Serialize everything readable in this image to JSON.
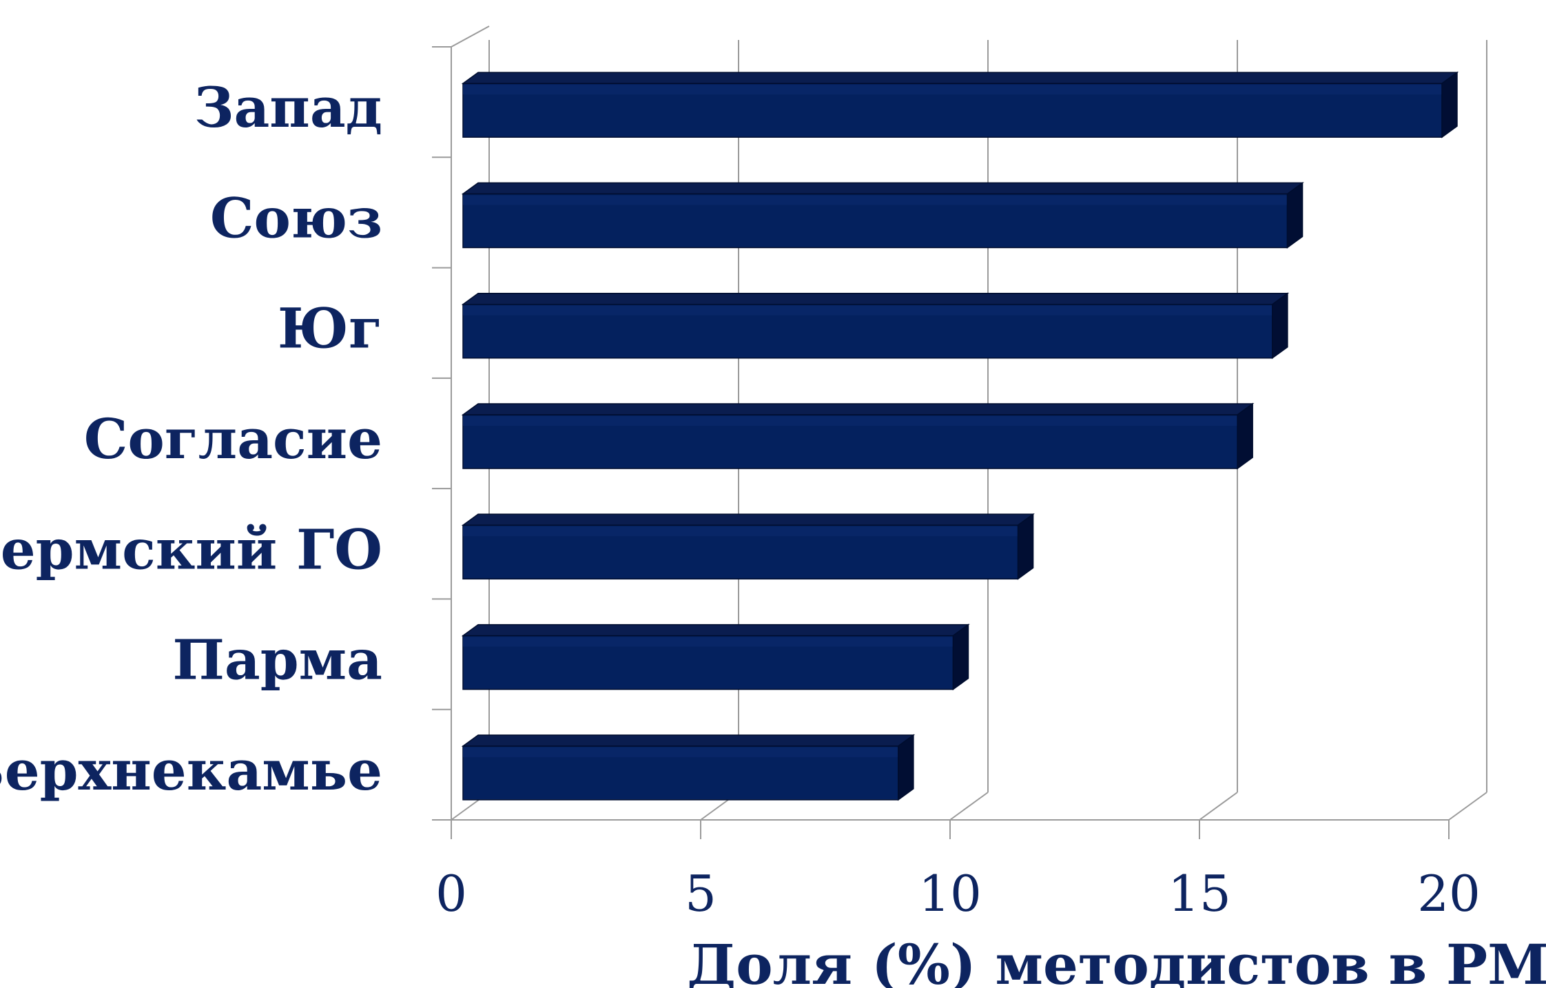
{
  "chart_data": {
    "type": "bar",
    "orientation": "horizontal",
    "style": "3d",
    "categories": [
      "Запад",
      "Союз",
      "Юг",
      "Согласие",
      "Пермский ГО",
      "Парма",
      "Верхнекамье"
    ],
    "values": [
      20.0,
      16.9,
      16.6,
      15.9,
      11.5,
      10.2,
      9.1
    ],
    "xlabel": "Доля (%) методистов в РМА",
    "ylabel": "",
    "title": "",
    "xlim": [
      0,
      20
    ],
    "xticks": [
      "0",
      "5",
      "10",
      "15",
      "20"
    ],
    "grid": true,
    "colors": {
      "bar_front": "#04215e",
      "bar_top": "#0a1d4f",
      "bar_side": "#010e33",
      "text": "#0d2460",
      "grid": "#9a9a9a"
    }
  }
}
